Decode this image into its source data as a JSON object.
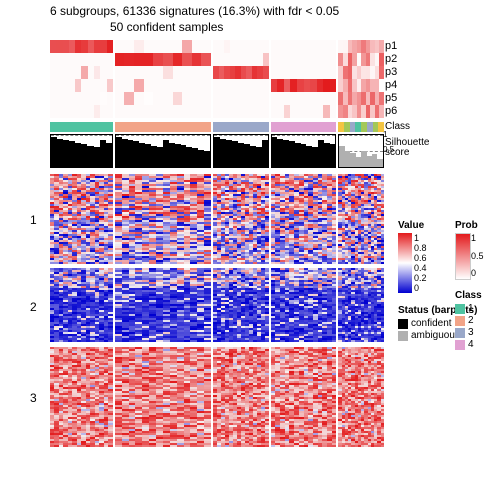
{
  "title1": "6 subgroups, 61336 signatures (16.3%) with fdr < 0.05",
  "title2": "50 confident samples",
  "prob_labels": [
    "p1",
    "p2",
    "p3",
    "p4",
    "p5",
    "p6"
  ],
  "class_label": "Class",
  "sil_label": "Silhouette\nscore",
  "sil_ticks": [
    "1",
    "0.5"
  ],
  "block_labels": [
    "1",
    "2",
    "3"
  ],
  "group_widths": [
    62,
    95,
    55,
    65,
    45
  ],
  "class_colors": [
    "#4fc3a1",
    "#f2a488",
    "#9aa8c9",
    "#e1a1d2",
    "multi"
  ],
  "multi_class_colors": [
    "#4fc3a1",
    "#f2a488",
    "#f4c542",
    "#9aa8c9",
    "#e1a1d2",
    "#a3c858"
  ],
  "prob_color_high": "#e31a1c",
  "prob_color_low": "#ffffff",
  "sil_confident": "#000000",
  "sil_ambiguous": "#b0b0b0",
  "heatmap_red": "#e31a1c",
  "heatmap_white": "#f5f0f0",
  "heatmap_blue": "#0000d0",
  "block_heights": [
    90,
    75,
    100
  ],
  "block_color_bias": [
    [
      0.7,
      0.3
    ],
    [
      0.15,
      0.85
    ],
    [
      0.92,
      0.08
    ]
  ],
  "sil_heights_conf": [
    0.95,
    0.9,
    0.88,
    0.85,
    0.82,
    0.78,
    0.75,
    0.72
  ],
  "sil_heights_amb": [
    0.65,
    0.5,
    0.45,
    0.3,
    0.5,
    0.35,
    0.4,
    0.25,
    0.3
  ],
  "legends": {
    "value": {
      "title": "Value",
      "ticks": [
        "1",
        "0.8",
        "0.6",
        "0.4",
        "0.2",
        "0"
      ],
      "top_color": "#e31a1c",
      "mid_color": "#ffffff",
      "bot_color": "#0000d0",
      "height": 60
    },
    "prob": {
      "title": "Prob",
      "ticks": [
        "1",
        "0.5",
        "0"
      ],
      "top_color": "#e31a1c",
      "bot_color": "#ffffff",
      "height": 45
    },
    "status": {
      "title": "Status (barplots)",
      "items": [
        {
          "label": "confident",
          "color": "#000000"
        },
        {
          "label": "ambiguous",
          "color": "#b0b0b0"
        }
      ]
    },
    "class": {
      "title": "Class",
      "items": [
        {
          "label": "1",
          "color": "#4fc3a1"
        },
        {
          "label": "2",
          "color": "#f2a488"
        },
        {
          "label": "3",
          "color": "#9aa8c9"
        },
        {
          "label": "4",
          "color": "#e1a1d2"
        }
      ]
    }
  }
}
